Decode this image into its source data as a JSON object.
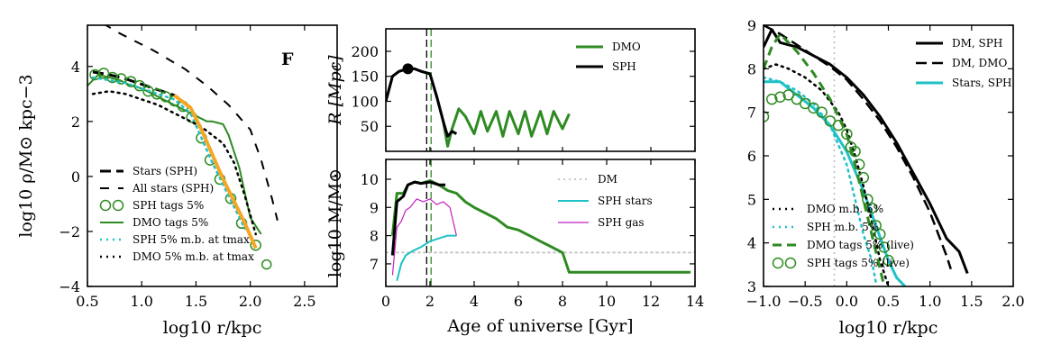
{
  "chart_data": [
    {
      "id": "left",
      "type": "line",
      "panel_label": "F",
      "xlabel": "log10 r/kpc",
      "ylabel": "log10 ρ/M⊙ kpc−3",
      "xlim": [
        0.5,
        2.8
      ],
      "ylim": [
        -4,
        5.5
      ],
      "xticks": [
        "0.5",
        "1.0",
        "1.5",
        "2.0",
        "2.5"
      ],
      "yticks": [
        "−4",
        "−2",
        "0",
        "2",
        "4"
      ],
      "legend_loc": "lower-left",
      "series": [
        {
          "name": "Stars (SPH)",
          "color": "#000000",
          "dash": "12,6",
          "width": 3,
          "x": [
            0.55,
            0.7,
            0.85,
            1.0,
            1.15,
            1.3,
            1.45,
            1.55,
            1.65,
            1.75,
            1.85,
            1.95,
            2.05
          ],
          "y": [
            3.8,
            3.7,
            3.55,
            3.35,
            3.15,
            2.95,
            2.5,
            1.7,
            0.8,
            -0.1,
            -0.9,
            -1.7,
            -2.6
          ]
        },
        {
          "name": "All stars (SPH)",
          "color": "#000000",
          "dash": "10,10",
          "width": 2,
          "x": [
            0.5,
            0.8,
            1.1,
            1.4,
            1.6,
            1.8,
            2.0,
            2.1,
            2.2,
            2.25
          ],
          "y": [
            5.9,
            5.2,
            4.6,
            3.9,
            3.3,
            2.6,
            1.7,
            0.6,
            -0.8,
            -1.6
          ]
        },
        {
          "name": "SPH tags 5%",
          "color": "#2e8b22",
          "marker": "circle",
          "x": [
            0.57,
            0.65,
            0.73,
            0.81,
            0.9,
            0.98,
            1.06,
            1.14,
            1.22,
            1.3,
            1.38,
            1.46,
            1.55,
            1.63,
            1.72,
            1.82,
            1.92,
            2.05
          ],
          "y": [
            3.7,
            3.75,
            3.6,
            3.55,
            3.45,
            3.3,
            3.1,
            3.0,
            2.9,
            2.75,
            2.55,
            2.15,
            1.4,
            0.6,
            -0.1,
            -0.8,
            -1.7,
            -2.5
          ]
        },
        {
          "name": "DMO tags 5%",
          "color": "#2e8b22",
          "dash": "",
          "width": 2,
          "x": [
            0.5,
            0.6,
            0.7,
            0.8,
            0.9,
            1.0,
            1.1,
            1.2,
            1.3,
            1.4,
            1.5,
            1.6,
            1.65,
            1.75,
            1.8,
            1.9,
            2.0,
            2.1
          ],
          "y": [
            3.3,
            3.7,
            3.6,
            3.5,
            3.3,
            3.2,
            3.0,
            2.8,
            2.6,
            2.4,
            2.2,
            2.0,
            2.0,
            1.9,
            1.5,
            0.3,
            -1.5,
            -2.1
          ]
        },
        {
          "name": "SPH 5% m.b. at tmax",
          "color": "#1fc1c6",
          "dash": "2,5",
          "width": 2.5,
          "x": [
            0.55,
            0.7,
            0.85,
            1.0,
            1.15,
            1.3,
            1.45,
            1.55,
            1.65,
            1.75,
            1.85,
            1.95
          ],
          "y": [
            3.6,
            3.5,
            3.4,
            3.2,
            3.0,
            2.8,
            2.3,
            1.4,
            0.5,
            -0.3,
            -1.1,
            -1.9
          ]
        },
        {
          "name": "DMO 5% m.b. at tmax",
          "color": "#000000",
          "dash": "2,5",
          "width": 2.5,
          "x": [
            0.55,
            0.7,
            0.85,
            1.0,
            1.15,
            1.3,
            1.45,
            1.55,
            1.65,
            1.75,
            1.85,
            1.95,
            2.05
          ],
          "y": [
            3.0,
            3.1,
            3.0,
            2.8,
            2.6,
            2.3,
            2.0,
            1.8,
            1.5,
            1.2,
            0.5,
            -0.7,
            -2.1
          ]
        },
        {
          "name": "",
          "color": "#f5a623",
          "dash": "",
          "width": 4,
          "x": [
            1.3,
            1.45,
            1.55,
            1.65,
            1.75,
            1.85,
            1.95,
            2.05
          ],
          "y": [
            2.95,
            2.5,
            1.7,
            0.8,
            -0.1,
            -0.9,
            -1.7,
            -2.6
          ]
        }
      ],
      "extra_markers": [
        {
          "x": 2.15,
          "y": -3.2,
          "color": "#2e8b22"
        }
      ]
    },
    {
      "id": "mid-top",
      "type": "line",
      "xlabel": "",
      "ylabel": "R [Mpc]",
      "xlim": [
        0,
        14
      ],
      "ylim": [
        0,
        245
      ],
      "yticks": [
        "50",
        "100",
        "150",
        "200"
      ],
      "ytick_values": [
        50,
        100,
        150,
        200
      ],
      "legend_loc": "top-right",
      "series": [
        {
          "name": "DMO",
          "color": "#2e8b22",
          "width": 3,
          "x": [
            0.0,
            0.3,
            0.6,
            1.0,
            1.3,
            1.6,
            2.0,
            2.3,
            2.6,
            2.8,
            3.0,
            3.3,
            3.6,
            4.0,
            4.3,
            4.6,
            5.0,
            5.3,
            5.6,
            6.0,
            6.3,
            6.6,
            7.0,
            7.3,
            7.6,
            8.0,
            8.3
          ],
          "y": [
            100,
            150,
            160,
            165,
            165,
            160,
            155,
            110,
            60,
            10,
            45,
            85,
            70,
            35,
            80,
            40,
            80,
            30,
            80,
            35,
            80,
            30,
            80,
            35,
            80,
            45,
            75
          ]
        },
        {
          "name": "SPH",
          "color": "#000000",
          "width": 3,
          "x": [
            0.0,
            0.3,
            0.6,
            1.0,
            1.3,
            1.6,
            2.0,
            2.3,
            2.6,
            2.8,
            3.0,
            3.2
          ],
          "y": [
            100,
            150,
            160,
            165,
            165,
            160,
            155,
            110,
            60,
            30,
            40,
            35
          ]
        }
      ],
      "peak_marker": {
        "x": 1.0,
        "y": 165
      },
      "vlines": [
        1.85,
        2.05
      ]
    },
    {
      "id": "mid-bottom",
      "type": "line",
      "xlabel": "Age of universe [Gyr]",
      "ylabel": "log10 M/M⊙",
      "xlim": [
        0,
        14
      ],
      "ylim": [
        6.2,
        10.7
      ],
      "xticks": [
        "0",
        "2",
        "4",
        "6",
        "8",
        "10",
        "12",
        "14"
      ],
      "yticks": [
        "7",
        "8",
        "9",
        "10"
      ],
      "legend_loc": "top-right",
      "series": [
        {
          "name": "DM",
          "color": "#c8c8c8",
          "dash": "2,4",
          "width": 2,
          "x": [
            0,
            14
          ],
          "y": [
            7.4,
            7.4
          ]
        },
        {
          "name": "SPH stars",
          "color": "#1fc1c6",
          "width": 2,
          "x": [
            0.5,
            0.7,
            0.9,
            1.2,
            1.6,
            2.0,
            2.4,
            2.8,
            3.2
          ],
          "y": [
            6.4,
            7.0,
            7.3,
            7.45,
            7.6,
            7.8,
            7.9,
            8.0,
            8.0
          ]
        },
        {
          "name": "SPH gas",
          "color": "#c020c0",
          "width": 1.2,
          "x": [
            0.3,
            0.5,
            0.7,
            0.9,
            1.1,
            1.4,
            1.7,
            2.0,
            2.3,
            2.6,
            2.9,
            3.2
          ],
          "y": [
            6.6,
            8.3,
            8.5,
            8.9,
            9.0,
            9.3,
            9.2,
            9.3,
            9.1,
            9.2,
            9.0,
            8.0
          ]
        },
        {
          "name": "",
          "color": "#2e8b22",
          "width": 3,
          "x": [
            0.3,
            0.5,
            0.8,
            1.0,
            1.3,
            1.6,
            2.0,
            2.4,
            2.8,
            3.2,
            3.6,
            4.0,
            4.5,
            5.0,
            5.5,
            6.0,
            6.5,
            7.0,
            7.5,
            8.0,
            8.3,
            9,
            10,
            11,
            12,
            13,
            13.8
          ],
          "y": [
            8.0,
            9.5,
            9.5,
            9.8,
            9.9,
            9.85,
            9.95,
            9.8,
            9.6,
            9.5,
            9.2,
            9.0,
            8.8,
            8.6,
            8.3,
            8.2,
            8.0,
            7.8,
            7.6,
            7.4,
            6.7,
            6.7,
            6.7,
            6.7,
            6.7,
            6.7,
            6.7
          ]
        },
        {
          "name": "",
          "color": "#000000",
          "width": 3,
          "x": [
            0.3,
            0.5,
            0.8,
            1.0,
            1.3,
            1.6,
            2.0,
            2.4,
            2.7
          ],
          "y": [
            7.3,
            9.2,
            9.4,
            9.8,
            9.9,
            9.85,
            9.9,
            9.8,
            9.8
          ]
        }
      ],
      "vlines": [
        1.85,
        2.05
      ]
    },
    {
      "id": "right",
      "type": "line",
      "xlabel": "log10 r/kpc",
      "ylabel": "",
      "xlim": [
        -1.0,
        2.0
      ],
      "ylim": [
        3,
        9
      ],
      "xticks": [
        "−1.0",
        "−0.5",
        "0.0",
        "0.5",
        "1.0",
        "1.5",
        "2.0"
      ],
      "yticks": [
        "3",
        "4",
        "5",
        "6",
        "7",
        "8",
        "9"
      ],
      "legend_loc": "top-right",
      "series": [
        {
          "name": "DM, SPH",
          "color": "#000000",
          "width": 3,
          "x": [
            -1.0,
            -0.9,
            -0.8,
            -0.6,
            -0.4,
            -0.2,
            0.0,
            0.2,
            0.4,
            0.6,
            0.8,
            1.0,
            1.2,
            1.35,
            1.45
          ],
          "y": [
            8.5,
            8.9,
            8.6,
            8.5,
            8.3,
            8.1,
            7.8,
            7.4,
            6.9,
            6.3,
            5.6,
            4.9,
            4.1,
            3.8,
            3.3
          ]
        },
        {
          "name": "DM, DMO",
          "color": "#000000",
          "dash": "12,6",
          "width": 2.5,
          "x": [
            -1.0,
            -0.8,
            -0.6,
            -0.4,
            -0.2,
            0.0,
            0.2,
            0.4,
            0.6,
            0.8,
            1.0,
            1.1,
            1.2,
            1.25
          ],
          "y": [
            9.0,
            8.8,
            8.55,
            8.3,
            8.05,
            7.75,
            7.3,
            6.8,
            6.2,
            5.5,
            4.7,
            4.2,
            3.7,
            3.4
          ]
        },
        {
          "name": "Stars, SPH",
          "color": "#1fc1c6",
          "width": 3,
          "x": [
            -1.0,
            -0.8,
            -0.6,
            -0.4,
            -0.2,
            0.0,
            0.2,
            0.35,
            0.5,
            0.6,
            0.7
          ],
          "y": [
            7.7,
            7.7,
            7.4,
            7.1,
            6.7,
            6.1,
            5.2,
            4.4,
            3.6,
            3.2,
            3.0
          ]
        },
        {
          "name": "DMO m.b. 5%",
          "color": "#000000",
          "dash": "2,5",
          "width": 2.5,
          "x": [
            -1.0,
            -0.85,
            -0.7,
            -0.5,
            -0.3,
            -0.1,
            0.0,
            0.1,
            0.2,
            0.3,
            0.4,
            0.5
          ],
          "y": [
            8.0,
            8.1,
            8.0,
            7.8,
            7.5,
            7.0,
            6.6,
            6.0,
            5.3,
            4.5,
            3.6,
            3.0
          ]
        },
        {
          "name": "SPH m.b. 5%",
          "color": "#1fc1c6",
          "dash": "2,5",
          "width": 2.5,
          "x": [
            -1.0,
            -0.8,
            -0.6,
            -0.4,
            -0.2,
            0.0,
            0.1,
            0.2,
            0.3,
            0.35
          ],
          "y": [
            7.8,
            7.7,
            7.5,
            7.2,
            6.7,
            5.8,
            5.0,
            4.2,
            3.6,
            3.1
          ]
        },
        {
          "name": "DMO tags 5% (live)",
          "color": "#2e8b22",
          "dash": "10,6",
          "width": 3,
          "x": [
            -1.0,
            -0.9,
            -0.8,
            -0.6,
            -0.4,
            -0.2,
            0.0,
            0.1,
            0.2,
            0.3,
            0.4,
            0.45
          ],
          "y": [
            8.0,
            8.5,
            8.8,
            8.4,
            7.9,
            7.3,
            6.5,
            5.8,
            5.0,
            4.2,
            3.4,
            3.0
          ]
        },
        {
          "name": "SPH tags 5% (live)",
          "color": "#2e8b22",
          "marker": "circle",
          "x": [
            -1.0,
            -0.9,
            -0.8,
            -0.7,
            -0.6,
            -0.5,
            -0.4,
            -0.3,
            -0.2,
            -0.1,
            0.0,
            0.05,
            0.1,
            0.15,
            0.2,
            0.25,
            0.3,
            0.35,
            0.4,
            0.45,
            0.5
          ],
          "y": [
            6.9,
            7.3,
            7.35,
            7.4,
            7.3,
            7.2,
            7.1,
            7.0,
            6.8,
            6.7,
            6.5,
            6.2,
            6.1,
            5.8,
            5.5,
            5.0,
            4.8,
            4.4,
            4.2,
            3.9,
            3.6
          ]
        }
      ],
      "vlines_dotted": [
        -0.15
      ]
    }
  ]
}
